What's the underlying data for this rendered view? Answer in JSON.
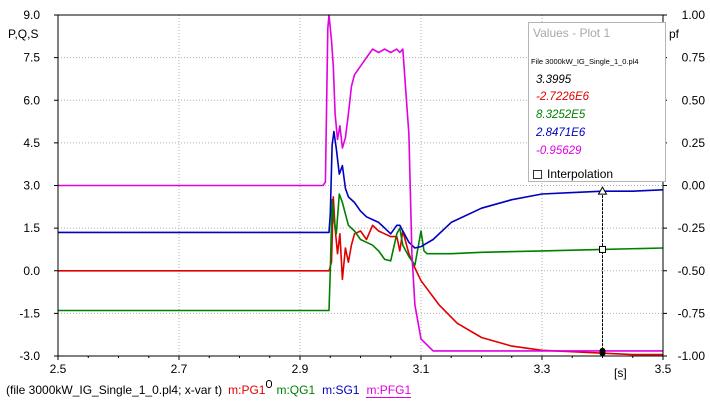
{
  "chart_data": {
    "type": "line",
    "xlabel_unit": "[s]",
    "ylabel_left": "P,Q,S",
    "ylabel_right": "pf",
    "xlim": [
      2.5,
      3.5
    ],
    "ylim_left": [
      -3.0,
      9.0
    ],
    "ylim_right": [
      -1.0,
      1.0
    ],
    "grid": true,
    "x_ticks": [
      "2.5",
      "2.7",
      "2.9",
      "3.1",
      "3.3",
      "3.5"
    ],
    "y_ticks_left": [
      "9.0",
      "7.5",
      "6.0",
      "4.5",
      "3.0",
      "1.5",
      "0.0",
      "-1.5",
      "-3.0"
    ],
    "y_ticks_right": [
      "1.00",
      "0.75",
      "0.50",
      "0.25",
      "0.00",
      "-0.25",
      "-0.50",
      "-0.75",
      "-1.00"
    ],
    "cursor_x": 3.4,
    "series": [
      {
        "name": "m:PG1",
        "color": "#e00000",
        "axis": "left",
        "x": [
          2.5,
          2.948,
          2.952,
          2.955,
          2.958,
          2.962,
          2.966,
          2.97,
          2.975,
          2.98,
          2.985,
          2.99,
          3.0,
          3.01,
          3.02,
          3.03,
          3.04,
          3.05,
          3.06,
          3.065,
          3.07,
          3.08,
          3.09,
          3.1,
          3.13,
          3.16,
          3.2,
          3.25,
          3.3,
          3.35,
          3.4,
          3.45,
          3.5
        ],
        "y": [
          0.0,
          0.0,
          0.3,
          2.6,
          1.5,
          0.6,
          1.3,
          -0.3,
          0.8,
          0.3,
          0.9,
          1.3,
          1.4,
          1.1,
          1.6,
          1.4,
          1.3,
          1.2,
          1.2,
          0.7,
          1.4,
          0.6,
          0.1,
          -0.35,
          -1.2,
          -1.85,
          -2.35,
          -2.65,
          -2.8,
          -2.85,
          -2.9,
          -2.95,
          -2.95
        ]
      },
      {
        "name": "m:QG1",
        "color": "#008000",
        "axis": "left",
        "x": [
          2.5,
          2.948,
          2.95,
          2.953,
          2.956,
          2.96,
          2.965,
          2.97,
          2.975,
          2.98,
          2.99,
          3.0,
          3.01,
          3.02,
          3.03,
          3.04,
          3.05,
          3.06,
          3.065,
          3.07,
          3.08,
          3.09,
          3.1,
          3.105,
          3.11,
          3.15,
          3.2,
          3.3,
          3.4,
          3.5
        ],
        "y": [
          -1.4,
          -1.4,
          0.0,
          2.5,
          1.8,
          1.3,
          2.7,
          2.4,
          2.0,
          1.6,
          1.4,
          1.1,
          1.0,
          0.9,
          0.7,
          0.4,
          0.35,
          1.3,
          1.5,
          0.9,
          0.5,
          0.2,
          1.4,
          0.7,
          0.6,
          0.6,
          0.65,
          0.7,
          0.75,
          0.8
        ]
      },
      {
        "name": "m:SG1",
        "color": "#0000c0",
        "axis": "left",
        "x": [
          2.5,
          2.948,
          2.95,
          2.953,
          2.956,
          2.96,
          2.965,
          2.97,
          2.975,
          2.98,
          2.99,
          3.0,
          3.01,
          3.02,
          3.03,
          3.04,
          3.05,
          3.06,
          3.065,
          3.07,
          3.08,
          3.09,
          3.1,
          3.12,
          3.15,
          3.2,
          3.25,
          3.3,
          3.35,
          3.4,
          3.45,
          3.5
        ],
        "y": [
          1.35,
          1.35,
          2.0,
          4.4,
          4.9,
          4.3,
          3.4,
          3.7,
          2.9,
          2.6,
          2.4,
          2.1,
          1.9,
          1.8,
          1.7,
          1.5,
          1.3,
          1.6,
          1.6,
          1.4,
          1.0,
          0.8,
          0.85,
          1.1,
          1.7,
          2.2,
          2.5,
          2.7,
          2.75,
          2.8,
          2.8,
          2.85
        ]
      },
      {
        "name": "m:PFG1",
        "color": "#e000e0",
        "axis": "right",
        "x": [
          2.5,
          2.938,
          2.942,
          2.946,
          2.948,
          2.952,
          2.955,
          2.958,
          2.962,
          2.966,
          2.97,
          2.975,
          2.98,
          2.985,
          2.99,
          3.0,
          3.01,
          3.02,
          3.03,
          3.04,
          3.05,
          3.06,
          3.065,
          3.07,
          3.08,
          3.085,
          3.09,
          3.1,
          3.12,
          3.2,
          3.3,
          3.4,
          3.5
        ],
        "y": [
          0.0,
          0.0,
          0.02,
          0.92,
          1.0,
          0.85,
          0.7,
          0.42,
          0.27,
          0.35,
          0.22,
          0.28,
          0.42,
          0.58,
          0.65,
          0.7,
          0.75,
          0.8,
          0.78,
          0.8,
          0.78,
          0.8,
          0.78,
          0.8,
          0.3,
          -0.4,
          -0.7,
          -0.9,
          -0.97,
          -0.97,
          -0.97,
          -0.97,
          -0.97
        ]
      }
    ]
  },
  "values_panel": {
    "title": "Values - Plot 1",
    "file": "File 3000kW_IG_Single_1_0.pl4",
    "values": [
      {
        "text": "3.3995",
        "color": "#000000"
      },
      {
        "text": "-2.7226E6",
        "color": "#e00000"
      },
      {
        "text": "8.3252E5",
        "color": "#008000"
      },
      {
        "text": "2.8471E6",
        "color": "#0000c0"
      },
      {
        "text": "-0.95629",
        "color": "#e000e0"
      }
    ],
    "interpolation_label": "Interpolation"
  },
  "footer": {
    "file_text": "(file 3000kW_IG_Single_1_0.pl4; x-var t)",
    "pg": "m:PG1",
    "qg": "m:QG1",
    "sg": "m:SG1",
    "pfg": "m:PFG1"
  }
}
